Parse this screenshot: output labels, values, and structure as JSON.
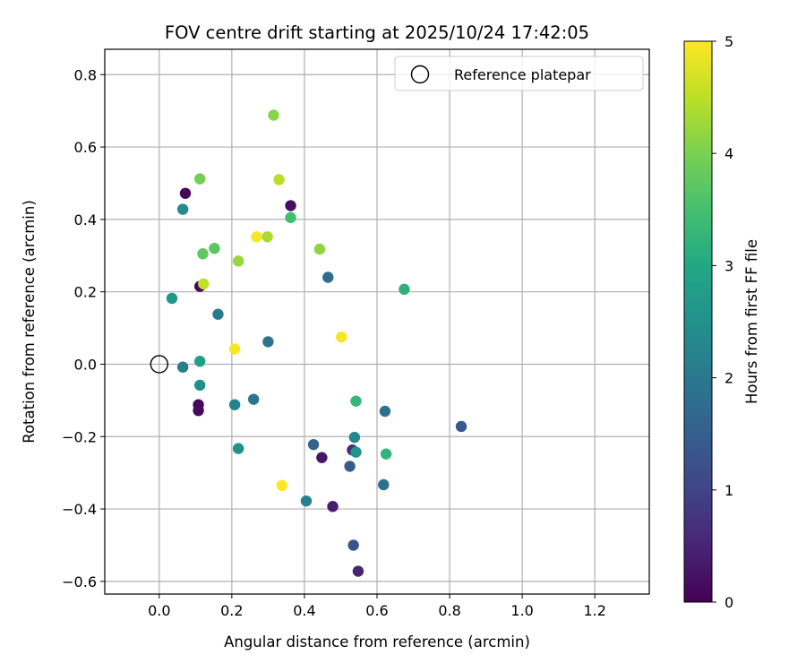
{
  "chart_data": {
    "type": "scatter",
    "title": "FOV centre drift starting at 2025/10/24 17:42:05",
    "xlabel": "Angular distance from reference (arcmin)",
    "ylabel": "Rotation from reference (arcmin)",
    "xlim": [
      -0.15,
      1.35
    ],
    "ylim": [
      -0.635,
      0.87
    ],
    "x_ticks": [
      0.0,
      0.2,
      0.4,
      0.6,
      0.8,
      1.0,
      1.2
    ],
    "x_tick_labels": [
      "0.0",
      "0.2",
      "0.4",
      "0.6",
      "0.8",
      "1.0",
      "1.2"
    ],
    "y_ticks": [
      -0.6,
      -0.4,
      -0.2,
      0.0,
      0.2,
      0.4,
      0.6,
      0.8
    ],
    "y_tick_labels": [
      "−0.6",
      "−0.4",
      "−0.2",
      "0.0",
      "0.2",
      "0.4",
      "0.6",
      "0.8"
    ],
    "grid": true,
    "legend": {
      "location": "upper-right",
      "entries": [
        "Reference platepar"
      ]
    },
    "reference_point": {
      "x": 0.0,
      "y": 0.0,
      "label": "Reference platepar"
    },
    "colorbar": {
      "label": "Hours from first FF file",
      "colormap": "viridis",
      "range": [
        0,
        5
      ],
      "ticks": [
        0,
        1,
        2,
        3,
        4,
        5
      ],
      "tick_labels": [
        "0",
        "1",
        "2",
        "3",
        "4",
        "5"
      ]
    },
    "points": [
      {
        "x": 0.072,
        "y": 0.472,
        "hours": 0.05
      },
      {
        "x": 0.112,
        "y": 0.215,
        "hours": 0.1
      },
      {
        "x": 0.108,
        "y": -0.112,
        "hours": 0.1
      },
      {
        "x": 0.108,
        "y": -0.128,
        "hours": 0.15
      },
      {
        "x": 0.362,
        "y": 0.438,
        "hours": 0.2
      },
      {
        "x": 0.448,
        "y": -0.258,
        "hours": 0.3
      },
      {
        "x": 0.478,
        "y": -0.393,
        "hours": 0.4
      },
      {
        "x": 0.548,
        "y": -0.572,
        "hours": 0.5
      },
      {
        "x": 0.532,
        "y": -0.237,
        "hours": 0.6
      },
      {
        "x": 0.535,
        "y": -0.5,
        "hours": 1.3
      },
      {
        "x": 0.832,
        "y": -0.172,
        "hours": 1.4
      },
      {
        "x": 0.525,
        "y": -0.282,
        "hours": 1.45
      },
      {
        "x": 0.425,
        "y": -0.222,
        "hours": 1.6
      },
      {
        "x": 0.465,
        "y": 0.24,
        "hours": 1.75
      },
      {
        "x": 0.622,
        "y": -0.13,
        "hours": 1.8
      },
      {
        "x": 0.618,
        "y": -0.333,
        "hours": 1.85
      },
      {
        "x": 0.3,
        "y": 0.062,
        "hours": 1.9
      },
      {
        "x": 0.26,
        "y": -0.097,
        "hours": 2.0
      },
      {
        "x": 0.162,
        "y": 0.138,
        "hours": 2.05
      },
      {
        "x": 0.065,
        "y": -0.008,
        "hours": 2.1
      },
      {
        "x": 0.405,
        "y": -0.378,
        "hours": 2.15
      },
      {
        "x": 0.208,
        "y": -0.112,
        "hours": 2.2
      },
      {
        "x": 0.538,
        "y": -0.202,
        "hours": 2.3
      },
      {
        "x": 0.065,
        "y": 0.428,
        "hours": 2.4
      },
      {
        "x": 0.112,
        "y": -0.058,
        "hours": 2.45
      },
      {
        "x": 0.218,
        "y": -0.233,
        "hours": 2.5
      },
      {
        "x": 0.542,
        "y": -0.243,
        "hours": 2.55
      },
      {
        "x": 0.035,
        "y": 0.182,
        "hours": 2.65
      },
      {
        "x": 0.112,
        "y": 0.008,
        "hours": 2.8
      },
      {
        "x": 0.675,
        "y": 0.207,
        "hours": 3.2
      },
      {
        "x": 0.625,
        "y": -0.248,
        "hours": 3.25
      },
      {
        "x": 0.542,
        "y": -0.102,
        "hours": 3.3
      },
      {
        "x": 0.362,
        "y": 0.405,
        "hours": 3.45
      },
      {
        "x": 0.152,
        "y": 0.32,
        "hours": 3.7
      },
      {
        "x": 0.12,
        "y": 0.305,
        "hours": 3.75
      },
      {
        "x": 0.112,
        "y": 0.512,
        "hours": 3.95
      },
      {
        "x": 0.315,
        "y": 0.688,
        "hours": 4.1
      },
      {
        "x": 0.442,
        "y": 0.318,
        "hours": 4.15
      },
      {
        "x": 0.218,
        "y": 0.285,
        "hours": 4.2
      },
      {
        "x": 0.298,
        "y": 0.352,
        "hours": 4.35
      },
      {
        "x": 0.33,
        "y": 0.51,
        "hours": 4.45
      },
      {
        "x": 0.122,
        "y": 0.222,
        "hours": 4.55
      },
      {
        "x": 0.268,
        "y": 0.352,
        "hours": 4.95
      },
      {
        "x": 0.208,
        "y": 0.042,
        "hours": 4.95
      },
      {
        "x": 0.502,
        "y": 0.075,
        "hours": 4.95
      },
      {
        "x": 0.338,
        "y": -0.335,
        "hours": 5.0
      }
    ]
  }
}
